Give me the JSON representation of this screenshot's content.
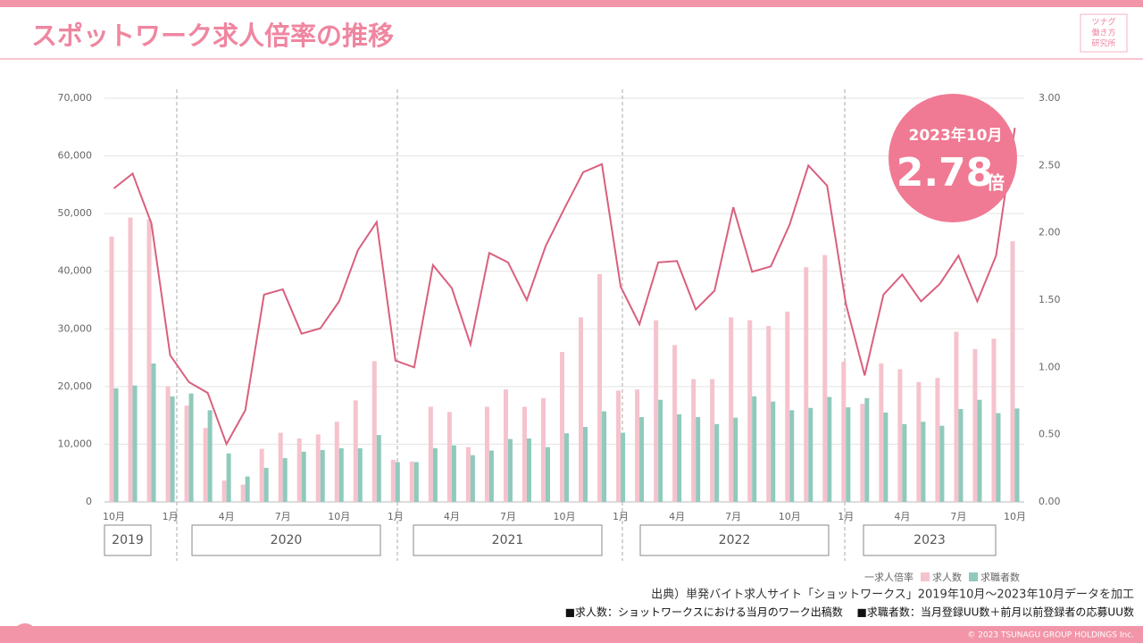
{
  "header": {
    "logo": [
      "ツナグ",
      "働き方",
      "研究所"
    ]
  },
  "chart_data": {
    "type": "bar_line",
    "title": "スポットワーク求人倍率の推移",
    "categories": [
      "10月",
      null,
      null,
      "1月",
      null,
      null,
      "4月",
      null,
      null,
      "7月",
      null,
      null,
      "10月",
      null,
      null,
      "1月",
      null,
      null,
      "4月",
      null,
      null,
      "7月",
      null,
      null,
      "10月",
      null,
      null,
      "1月",
      null,
      null,
      "4月",
      null,
      null,
      "7月",
      null,
      null,
      "10月",
      null,
      null,
      "1月",
      null,
      null,
      "4月",
      null,
      null,
      "7月",
      null,
      null,
      "10月"
    ],
    "year_labels": [
      "2019",
      "2020",
      "2021",
      "2022",
      "2023"
    ],
    "series": [
      {
        "name": "一求人倍率",
        "kind": "line",
        "axis": "y2",
        "color": "#d9607e",
        "values": [
          2.33,
          2.44,
          2.07,
          1.09,
          0.89,
          0.81,
          0.43,
          0.68,
          1.54,
          1.58,
          1.25,
          1.29,
          1.49,
          1.87,
          2.08,
          1.05,
          1.0,
          1.76,
          1.59,
          1.17,
          1.85,
          1.78,
          1.5,
          1.9,
          2.18,
          2.45,
          2.51,
          1.6,
          1.32,
          1.78,
          1.79,
          1.43,
          1.57,
          2.19,
          1.71,
          1.75,
          2.06,
          2.5,
          2.35,
          1.47,
          0.94,
          1.54,
          1.69,
          1.49,
          1.62,
          1.83,
          1.49,
          1.83,
          2.78
        ]
      },
      {
        "name": "求人数",
        "kind": "bar",
        "color": "#f5c3cd",
        "values": [
          46000,
          49300,
          49000,
          20000,
          16700,
          12800,
          3700,
          3000,
          9200,
          12000,
          11000,
          11700,
          13900,
          17600,
          24400,
          7300,
          7000,
          16500,
          15600,
          9500,
          16500,
          19500,
          16500,
          18000,
          26000,
          32000,
          39500,
          19300,
          19500,
          31500,
          27200,
          21300,
          21300,
          32000,
          31500,
          30500,
          33000,
          40700,
          42800,
          24300,
          17000,
          24000,
          23000,
          20800,
          21500,
          29500,
          26500,
          28300,
          45200
        ]
      },
      {
        "name": "求職者数",
        "kind": "bar",
        "color": "#8fcabc",
        "values": [
          19700,
          20200,
          24000,
          18300,
          18800,
          15900,
          8400,
          4400,
          5900,
          7600,
          8700,
          9000,
          9300,
          9300,
          11600,
          6900,
          6900,
          9300,
          9800,
          8100,
          8900,
          10900,
          11000,
          9500,
          11900,
          13000,
          15700,
          12000,
          14700,
          17700,
          15200,
          14700,
          13500,
          14600,
          18300,
          17400,
          15900,
          16300,
          18200,
          16400,
          18000,
          15500,
          13500,
          13900,
          13200,
          16100,
          17700,
          15400,
          16200
        ]
      }
    ],
    "ylim": [
      0,
      70000
    ],
    "yticks": [
      0,
      {
        "value": 10000,
        "label": "10,000"
      },
      {
        "value": 20000,
        "label": "20,000"
      },
      {
        "value": 30000,
        "label": "30,000"
      },
      {
        "value": 40000,
        "label": "40,000"
      },
      {
        "value": 50000,
        "label": "50,000"
      },
      {
        "value": 60000,
        "label": "60,000"
      },
      {
        "value": 70000,
        "label": "70,000"
      }
    ],
    "y2lim": [
      0,
      3
    ],
    "y2ticks": [
      {
        "value": 0,
        "label": "0.00"
      },
      {
        "value": 0.5,
        "label": "0.50"
      },
      {
        "value": 1,
        "label": "1.00"
      },
      {
        "value": 1.5,
        "label": "1.50"
      },
      {
        "value": 2,
        "label": "2.00"
      },
      {
        "value": 2.5,
        "label": "2.50"
      },
      {
        "value": 3,
        "label": "3.00"
      }
    ],
    "grid": true,
    "callout": {
      "label": "2023年10月",
      "value": 2.78,
      "unit": "倍"
    }
  },
  "footer": {
    "source": "出典）単発バイト求人サイト「ショットワークス」2019年10月～2023年10月データを加工",
    "note": "■求人数：ショットワークスにおける当月のワーク出稿数　 ■求職者数：当月登録UU数＋前月以前登録者の応募UU数",
    "copyright": "© 2023 TSUNAGU GROUP HOLDINGS Inc."
  }
}
